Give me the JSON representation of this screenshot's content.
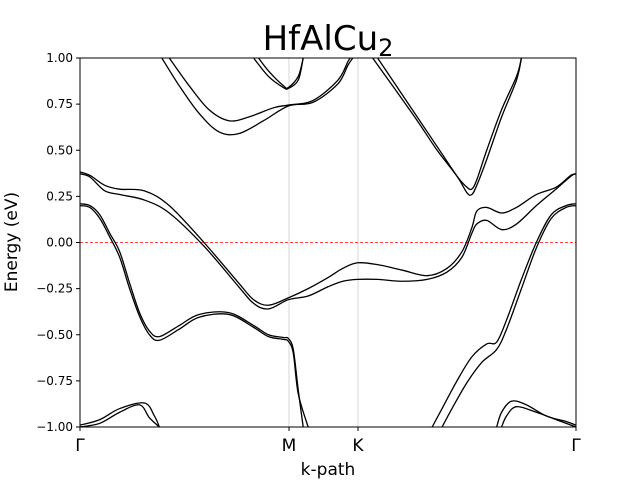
{
  "chart_data": {
    "type": "line",
    "title": "HfAlCu",
    "title_subscript": "2",
    "xlabel": "k-path",
    "ylabel": "Energy (eV)",
    "ylim": [
      -1.0,
      1.0
    ],
    "xlim": [
      0,
      1
    ],
    "yticks": [
      -1.0,
      -0.75,
      -0.5,
      -0.25,
      0.0,
      0.25,
      0.5,
      0.75,
      1.0
    ],
    "ytick_labels": [
      "−1.00",
      "−0.75",
      "−0.50",
      "−0.25",
      "0.00",
      "0.25",
      "0.50",
      "0.75",
      "1.00"
    ],
    "kpoints": [
      {
        "label": "Γ",
        "x": 0.0
      },
      {
        "label": "M",
        "x": 0.4214
      },
      {
        "label": "K",
        "x": 0.5605
      },
      {
        "label": "Γ",
        "x": 1.0
      }
    ],
    "fermi_level": 0.0,
    "fermi_color": "#ff0000",
    "band_color": "#000000",
    "series": [
      {
        "points": [
          [
            0.0,
            0.382
          ],
          [
            0.02,
            0.364
          ],
          [
            0.05,
            0.31
          ],
          [
            0.08,
            0.289
          ],
          [
            0.13,
            0.28
          ],
          [
            0.18,
            0.2
          ],
          [
            0.25,
            0.0
          ],
          [
            0.32,
            -0.22
          ],
          [
            0.35,
            -0.31
          ],
          [
            0.38,
            -0.34
          ],
          [
            0.42,
            -0.3
          ],
          [
            0.46,
            -0.25
          ],
          [
            0.5,
            -0.19
          ],
          [
            0.53,
            -0.14
          ],
          [
            0.56,
            -0.11
          ],
          [
            0.6,
            -0.12
          ],
          [
            0.65,
            -0.15
          ],
          [
            0.7,
            -0.18
          ],
          [
            0.74,
            -0.14
          ],
          [
            0.77,
            -0.05
          ],
          [
            0.79,
            0.08
          ],
          [
            0.8,
            0.17
          ],
          [
            0.82,
            0.19
          ],
          [
            0.85,
            0.16
          ],
          [
            0.88,
            0.19
          ],
          [
            0.92,
            0.26
          ],
          [
            0.96,
            0.3
          ],
          [
            0.99,
            0.365
          ],
          [
            1.0,
            0.37
          ]
        ]
      },
      {
        "points": [
          [
            0.0,
            0.372
          ],
          [
            0.02,
            0.355
          ],
          [
            0.05,
            0.28
          ],
          [
            0.08,
            0.26
          ],
          [
            0.13,
            0.23
          ],
          [
            0.18,
            0.16
          ],
          [
            0.25,
            -0.02
          ],
          [
            0.32,
            -0.24
          ],
          [
            0.35,
            -0.33
          ],
          [
            0.38,
            -0.36
          ],
          [
            0.42,
            -0.31
          ],
          [
            0.46,
            -0.29
          ],
          [
            0.5,
            -0.24
          ],
          [
            0.53,
            -0.21
          ],
          [
            0.56,
            -0.2
          ],
          [
            0.6,
            -0.2
          ],
          [
            0.65,
            -0.21
          ],
          [
            0.7,
            -0.2
          ],
          [
            0.74,
            -0.16
          ],
          [
            0.77,
            -0.08
          ],
          [
            0.79,
            0.05
          ],
          [
            0.8,
            0.1
          ],
          [
            0.82,
            0.12
          ],
          [
            0.85,
            0.07
          ],
          [
            0.88,
            0.1
          ],
          [
            0.92,
            0.2
          ],
          [
            0.96,
            0.29
          ],
          [
            0.99,
            0.36
          ],
          [
            1.0,
            0.373
          ]
        ]
      },
      {
        "points": [
          [
            0.0,
            0.21
          ],
          [
            0.02,
            0.2
          ],
          [
            0.04,
            0.15
          ],
          [
            0.06,
            0.05
          ],
          [
            0.08,
            -0.05
          ],
          [
            0.1,
            -0.22
          ],
          [
            0.12,
            -0.38
          ],
          [
            0.14,
            -0.48
          ],
          [
            0.16,
            -0.51
          ],
          [
            0.2,
            -0.45
          ],
          [
            0.24,
            -0.39
          ],
          [
            0.3,
            -0.38
          ],
          [
            0.35,
            -0.45
          ],
          [
            0.38,
            -0.5
          ],
          [
            0.41,
            -0.515
          ],
          [
            0.42,
            -0.52
          ],
          [
            0.43,
            -0.58
          ],
          [
            0.44,
            -0.8
          ],
          [
            0.45,
            -1.0
          ]
        ]
      },
      {
        "points": [
          [
            0.0,
            0.2
          ],
          [
            0.02,
            0.19
          ],
          [
            0.04,
            0.13
          ],
          [
            0.06,
            0.03
          ],
          [
            0.08,
            -0.08
          ],
          [
            0.1,
            -0.25
          ],
          [
            0.12,
            -0.4
          ],
          [
            0.14,
            -0.5
          ],
          [
            0.16,
            -0.53
          ],
          [
            0.2,
            -0.47
          ],
          [
            0.24,
            -0.405
          ],
          [
            0.3,
            -0.39
          ],
          [
            0.35,
            -0.46
          ],
          [
            0.38,
            -0.51
          ],
          [
            0.41,
            -0.525
          ],
          [
            0.42,
            -0.535
          ],
          [
            0.43,
            -0.6
          ],
          [
            0.44,
            -0.82
          ],
          [
            0.46,
            -1.0
          ]
        ]
      },
      {
        "points": [
          [
            0.71,
            -1.0
          ],
          [
            0.73,
            -0.9
          ],
          [
            0.76,
            -0.75
          ],
          [
            0.79,
            -0.62
          ],
          [
            0.82,
            -0.55
          ],
          [
            0.84,
            -0.54
          ],
          [
            0.86,
            -0.42
          ],
          [
            0.89,
            -0.2
          ],
          [
            0.92,
            0.0
          ],
          [
            0.95,
            0.15
          ],
          [
            0.98,
            0.2
          ],
          [
            1.0,
            0.21
          ]
        ]
      },
      {
        "points": [
          [
            0.73,
            -1.0
          ],
          [
            0.75,
            -0.9
          ],
          [
            0.78,
            -0.76
          ],
          [
            0.81,
            -0.65
          ],
          [
            0.84,
            -0.58
          ],
          [
            0.86,
            -0.47
          ],
          [
            0.89,
            -0.25
          ],
          [
            0.92,
            -0.03
          ],
          [
            0.95,
            0.13
          ],
          [
            0.98,
            0.19
          ],
          [
            1.0,
            0.2
          ]
        ]
      },
      {
        "points": [
          [
            0.0,
            -0.99
          ],
          [
            0.04,
            -0.96
          ],
          [
            0.08,
            -0.9
          ],
          [
            0.13,
            -0.87
          ],
          [
            0.15,
            -0.94
          ],
          [
            0.16,
            -1.0
          ]
        ]
      },
      {
        "points": [
          [
            0.0,
            -1.0
          ],
          [
            0.04,
            -0.98
          ],
          [
            0.08,
            -0.92
          ],
          [
            0.12,
            -0.88
          ],
          [
            0.14,
            -0.95
          ],
          [
            0.16,
            -1.0
          ]
        ]
      },
      {
        "points": [
          [
            0.84,
            -1.0
          ],
          [
            0.85,
            -0.92
          ],
          [
            0.87,
            -0.86
          ],
          [
            0.9,
            -0.88
          ],
          [
            0.94,
            -0.94
          ],
          [
            0.98,
            -0.97
          ],
          [
            1.0,
            -0.99
          ]
        ]
      },
      {
        "points": [
          [
            0.85,
            -1.0
          ],
          [
            0.86,
            -0.94
          ],
          [
            0.88,
            -0.89
          ],
          [
            0.92,
            -0.92
          ],
          [
            0.96,
            -0.96
          ],
          [
            1.0,
            -1.0
          ]
        ]
      },
      {
        "points": [
          [
            0.165,
            1.0
          ],
          [
            0.2,
            0.85
          ],
          [
            0.24,
            0.7
          ],
          [
            0.28,
            0.6
          ],
          [
            0.32,
            0.59
          ],
          [
            0.37,
            0.66
          ],
          [
            0.42,
            0.74
          ],
          [
            0.47,
            0.76
          ],
          [
            0.52,
            0.86
          ],
          [
            0.54,
            0.96
          ],
          [
            0.55,
            1.0
          ]
        ]
      },
      {
        "points": [
          [
            0.18,
            1.0
          ],
          [
            0.22,
            0.85
          ],
          [
            0.26,
            0.72
          ],
          [
            0.3,
            0.66
          ],
          [
            0.34,
            0.68
          ],
          [
            0.39,
            0.73
          ],
          [
            0.42,
            0.745
          ],
          [
            0.47,
            0.77
          ],
          [
            0.52,
            0.88
          ],
          [
            0.54,
            0.98
          ],
          [
            0.545,
            1.0
          ]
        ]
      },
      {
        "points": [
          [
            0.36,
            1.0
          ],
          [
            0.38,
            0.93
          ],
          [
            0.41,
            0.85
          ],
          [
            0.42,
            0.84
          ],
          [
            0.44,
            0.9
          ],
          [
            0.45,
            1.0
          ]
        ]
      },
      {
        "points": [
          [
            0.35,
            1.0
          ],
          [
            0.38,
            0.9
          ],
          [
            0.41,
            0.84
          ],
          [
            0.42,
            0.835
          ],
          [
            0.44,
            0.88
          ],
          [
            0.45,
            1.0
          ]
        ]
      },
      {
        "points": [
          [
            0.59,
            1.0
          ],
          [
            0.63,
            0.85
          ],
          [
            0.68,
            0.66
          ],
          [
            0.72,
            0.5
          ],
          [
            0.76,
            0.36
          ],
          [
            0.78,
            0.27
          ],
          [
            0.79,
            0.26
          ],
          [
            0.8,
            0.31
          ],
          [
            0.82,
            0.45
          ],
          [
            0.85,
            0.68
          ],
          [
            0.88,
            0.88
          ],
          [
            0.89,
            1.0
          ]
        ]
      },
      {
        "points": [
          [
            0.6,
            1.0
          ],
          [
            0.64,
            0.84
          ],
          [
            0.69,
            0.64
          ],
          [
            0.73,
            0.48
          ],
          [
            0.76,
            0.36
          ],
          [
            0.78,
            0.3
          ],
          [
            0.79,
            0.29
          ],
          [
            0.8,
            0.34
          ],
          [
            0.82,
            0.5
          ],
          [
            0.85,
            0.72
          ],
          [
            0.88,
            0.9
          ],
          [
            0.89,
            1.0
          ]
        ]
      }
    ]
  }
}
